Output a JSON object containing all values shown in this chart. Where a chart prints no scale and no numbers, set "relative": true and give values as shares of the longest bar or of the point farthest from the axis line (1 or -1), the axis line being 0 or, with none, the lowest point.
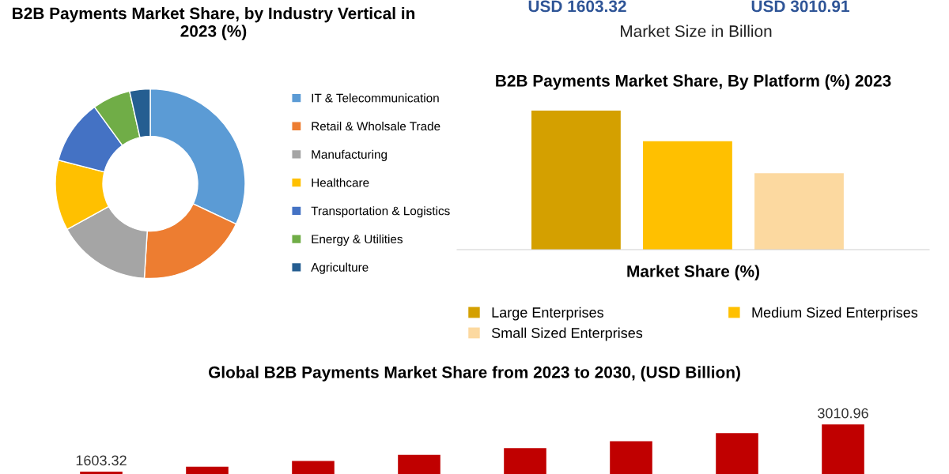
{
  "chart_data": [
    {
      "type": "donut",
      "title": "B2B Payments Market Share, by Industry Vertical in 2023 (%)",
      "categories": [
        "IT & Telecommunication",
        "Retail & Wholsale Trade",
        "Manufacturing",
        "Healthcare",
        "Transportation & Logistics",
        "Energy & Utilities",
        "Agriculture"
      ],
      "values": [
        32,
        19,
        16,
        12,
        11,
        6.5,
        3.5
      ],
      "colors": [
        "#5b9bd5",
        "#ed7d31",
        "#a5a5a5",
        "#ffc000",
        "#4472c4",
        "#70ad47",
        "#255e91"
      ],
      "legend": "right"
    },
    {
      "type": "other",
      "annotations": [
        "USD 1603.32",
        "USD 3010.91",
        "Market Size in Billion"
      ]
    },
    {
      "type": "bar",
      "title": "B2B Payments Market Share, By Platform (%) 2023",
      "xlabel": "Market Share (%)",
      "categories": [
        null
      ],
      "series": [
        {
          "name": "Large Enterprises",
          "color": "#d4a000",
          "values": [
            1
          ]
        },
        {
          "name": "Medium Sized Enterprises",
          "color": "#ffc000",
          "values": [
            0.78
          ]
        },
        {
          "name": "Small Sized Enterprises",
          "color": "#fcd9a0",
          "values": [
            0.55
          ]
        }
      ],
      "relative": true,
      "legend": "bottom",
      "tick_labels": false
    },
    {
      "type": "bar",
      "title": "Global B2B Payments Market Share from 2023 to 2030, (USD Billion)",
      "categories": [
        null,
        null,
        null,
        null,
        null,
        null,
        null,
        null
      ],
      "values": [
        1603.32,
        1750,
        1920,
        2100,
        2300,
        2510,
        2750,
        3010.96
      ],
      "value_labels": [
        "1603.32",
        null,
        null,
        null,
        null,
        null,
        null,
        "3010.96"
      ],
      "color": "#c00000",
      "tick_labels": false,
      "legend": false
    }
  ]
}
